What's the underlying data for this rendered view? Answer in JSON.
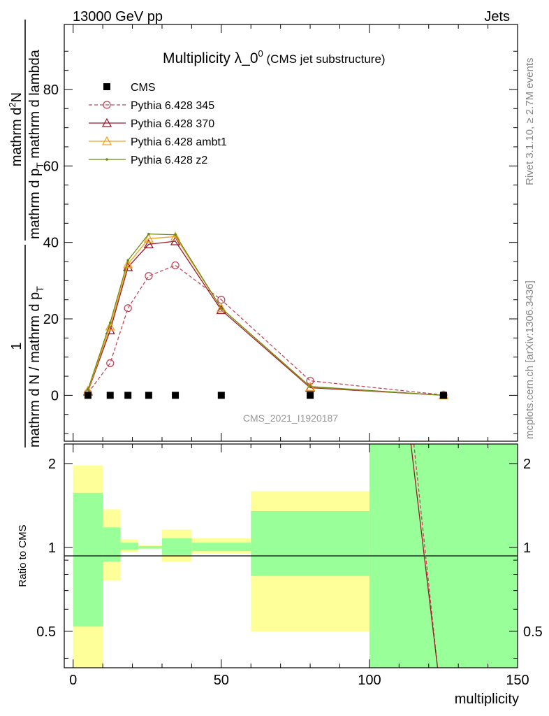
{
  "header": {
    "left": "13000 GeV pp",
    "right": "Jets"
  },
  "side_text": {
    "rivet": "Rivet 3.1.10, ≥ 2.7M events",
    "mcplots": "mcplots.cern.ch [arXiv:1306.3436]"
  },
  "chart_data": [
    {
      "type": "line",
      "title": "Multiplicity λ_0",
      "title_sup": "0",
      "subtitle": "(CMS jet substructure)",
      "watermark": "CMS_2021_I1920187",
      "ylabel_num_main": "mathrm d",
      "ylabel_num_sup": "2",
      "ylabel_num_tail": "N",
      "ylabel_den": "mathrm d p",
      "ylabel_den_sub": "T",
      "ylabel_den_tail": " mathrm d lambda",
      "ylabel_pref_num": "1",
      "ylabel_pref_den": "mathrm d N / mathrm d p",
      "ylabel_pref_den_sub": "T",
      "xlim": [
        -3,
        150
      ],
      "ylim": [
        -12,
        97
      ],
      "yticks": [
        0,
        20,
        40,
        60,
        80
      ],
      "ytick_labels": [
        "0",
        "20",
        "40",
        "60",
        "80"
      ],
      "legend_position": "top-left",
      "series": [
        {
          "name": "CMS",
          "color": "#000000",
          "marker": "square",
          "x": [
            5,
            12.5,
            18.5,
            25.5,
            34.5,
            50,
            80,
            125
          ],
          "y": [
            0,
            0,
            0,
            0,
            0,
            0,
            0,
            0
          ]
        },
        {
          "name": "Pythia 6.428 345",
          "color": "#c04a5a",
          "marker": "circle",
          "dash": true,
          "x": [
            5,
            12.5,
            18.5,
            25.5,
            34.5,
            50,
            80,
            125
          ],
          "y": [
            0.6,
            8.4,
            22.8,
            31.2,
            34.0,
            25.0,
            3.8,
            0.1
          ]
        },
        {
          "name": "Pythia 6.428 370",
          "color": "#9a1a2a",
          "marker": "triangle",
          "x": [
            5,
            12.5,
            18.5,
            25.5,
            34.5,
            50,
            80,
            125
          ],
          "y": [
            1.0,
            17.0,
            33.5,
            39.5,
            40.3,
            22.3,
            2.0,
            0.0
          ]
        },
        {
          "name": "Pythia 6.428 ambt1",
          "color": "#f0a020",
          "marker": "triangle",
          "x": [
            5,
            12.5,
            18.5,
            25.5,
            34.5,
            50,
            80,
            125
          ],
          "y": [
            1.2,
            18.0,
            34.3,
            41.0,
            41.5,
            22.8,
            2.2,
            0.0
          ]
        },
        {
          "name": "Pythia 6.428 z2",
          "color": "#6a8a10",
          "marker": "dot",
          "x": [
            5,
            12.5,
            18.5,
            25.5,
            34.5,
            50,
            80,
            125
          ],
          "y": [
            1.5,
            19.0,
            35.3,
            42.2,
            42.0,
            22.8,
            2.3,
            0.0
          ]
        }
      ]
    },
    {
      "type": "area",
      "ylabel": "Ratio to CMS",
      "xlabel": "multiplicity",
      "xlim": [
        -3,
        150
      ],
      "ylim": [
        0.37,
        2.35
      ],
      "yticks": [
        0.5,
        1,
        2
      ],
      "ytick_labels": [
        "0.5",
        "1",
        "2"
      ],
      "xticks": [
        0,
        50,
        100,
        150
      ],
      "xtick_labels": [
        "0",
        "50",
        "100",
        "150"
      ],
      "bands": [
        {
          "x": [
            0,
            10
          ],
          "yellow": [
            0.3,
            1.97
          ],
          "green": [
            0.52,
            1.57
          ]
        },
        {
          "x": [
            10,
            16
          ],
          "yellow": [
            0.76,
            1.37
          ],
          "green": [
            0.89,
            1.18
          ]
        },
        {
          "x": [
            16,
            22
          ],
          "yellow": [
            0.96,
            1.07
          ],
          "green": [
            0.98,
            1.04
          ]
        },
        {
          "x": [
            22,
            30
          ],
          "yellow": [
            0.99,
            1.02
          ],
          "green": [
            0.99,
            1.01
          ]
        },
        {
          "x": [
            30,
            40
          ],
          "yellow": [
            0.89,
            1.16
          ],
          "green": [
            0.94,
            1.08
          ]
        },
        {
          "x": [
            40,
            60
          ],
          "yellow": [
            0.95,
            1.08
          ],
          "green": [
            0.97,
            1.04
          ]
        },
        {
          "x": [
            60,
            100
          ],
          "yellow": [
            0.5,
            1.59
          ],
          "green": [
            0.79,
            1.35
          ]
        },
        {
          "x": [
            100,
            150
          ],
          "yellow": [
            0.3,
            3.0
          ],
          "green": [
            0.3,
            3.0
          ]
        }
      ],
      "colors": {
        "yellow": "#ffff99",
        "green": "#99ff99"
      },
      "ratio_lines": [
        {
          "color": "#c04a5a",
          "dash": true,
          "x": [
            115,
            123
          ],
          "y": [
            2.35,
            0.37
          ]
        },
        {
          "color": "#9a1a2a",
          "dash": false,
          "x": [
            114,
            123
          ],
          "y": [
            2.35,
            0.37
          ]
        }
      ]
    }
  ]
}
